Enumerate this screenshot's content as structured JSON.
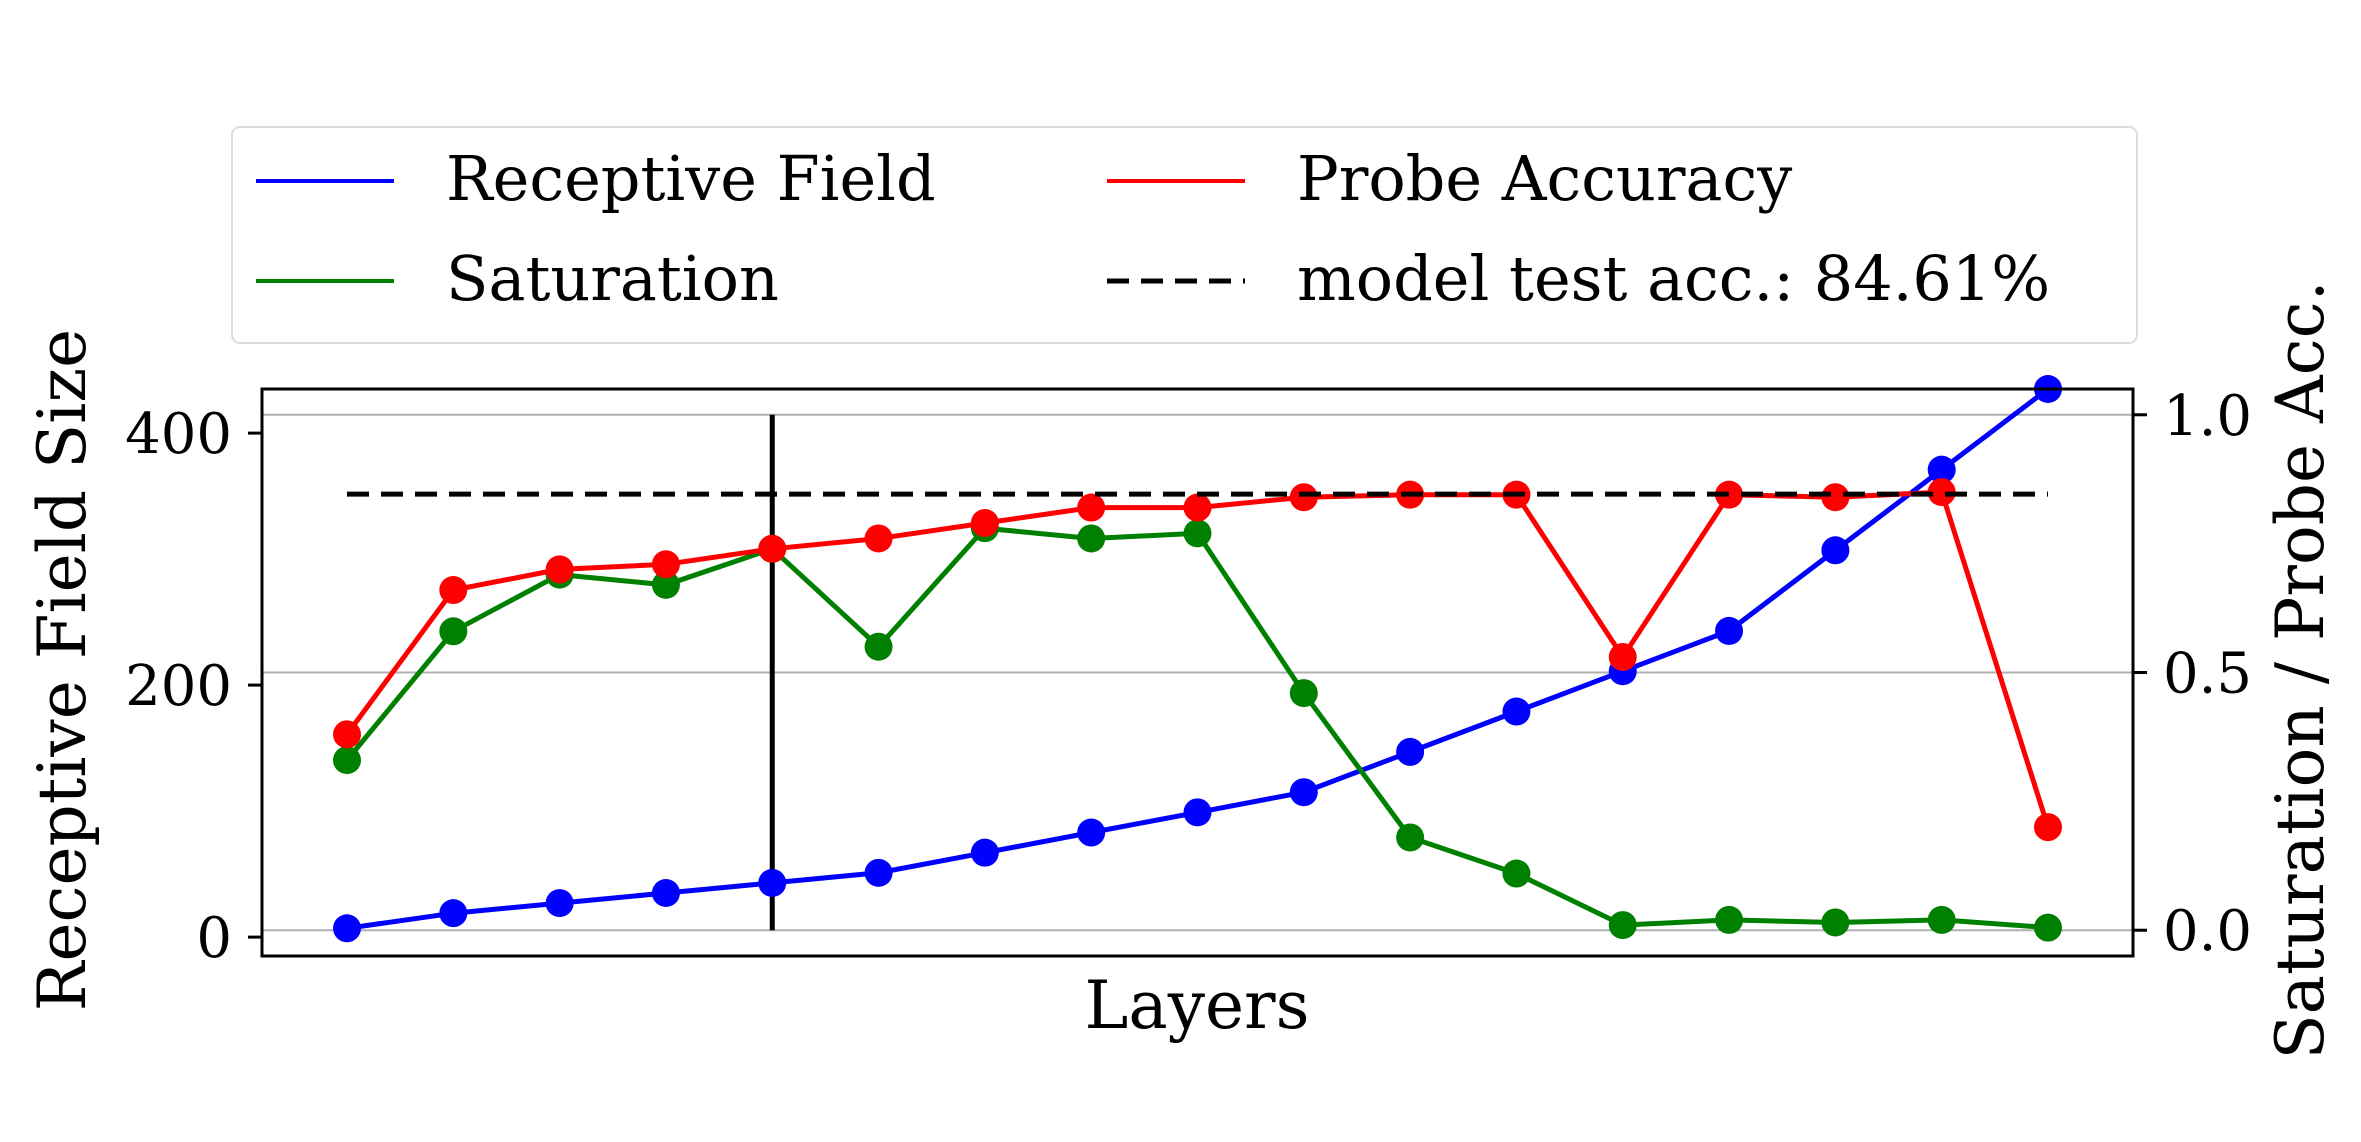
{
  "chart_data": {
    "type": "line",
    "xlabel": "Layers",
    "ylabel_left": "Receptive Field Size",
    "ylabel_right": "Saturation / Probe Acc.",
    "x": [
      1,
      2,
      3,
      4,
      5,
      6,
      7,
      8,
      9,
      10,
      11,
      12,
      13,
      14,
      15,
      16,
      17
    ],
    "x_ticks_shown": false,
    "ylim_left": [
      -15,
      435
    ],
    "yticks_left": [
      0,
      200,
      400
    ],
    "ylim_right": [
      -0.05,
      1.05
    ],
    "yticks_right": [
      "0.0",
      "0.5",
      "1.0"
    ],
    "grid": "horizontal, right axis",
    "vline_x": 5,
    "legend_position": "top, outside, 2 columns",
    "series": [
      {
        "name": "Receptive Field",
        "axis": "left",
        "color": "#0000ff",
        "marker": "circle",
        "values": [
          7,
          19,
          27,
          35,
          43,
          51,
          67,
          83,
          99,
          115,
          147,
          179,
          211,
          243,
          307,
          371,
          435
        ]
      },
      {
        "name": "Saturation",
        "axis": "right",
        "color": "#008000",
        "marker": "circle",
        "values": [
          0.33,
          0.58,
          0.69,
          0.67,
          0.74,
          0.55,
          0.78,
          0.76,
          0.77,
          0.46,
          0.18,
          0.11,
          0.01,
          0.02,
          0.015,
          0.02,
          0.005
        ]
      },
      {
        "name": "Probe Accuracy",
        "axis": "right",
        "color": "#ff0000",
        "marker": "circle",
        "values": [
          0.38,
          0.66,
          0.7,
          0.71,
          0.74,
          0.76,
          0.79,
          0.82,
          0.82,
          0.84,
          0.845,
          0.845,
          0.53,
          0.845,
          0.84,
          0.85,
          0.2
        ]
      },
      {
        "name": "model test acc.: 84.61%",
        "axis": "right",
        "color": "#000000",
        "style": "dashed",
        "value": 0.8461
      }
    ]
  }
}
